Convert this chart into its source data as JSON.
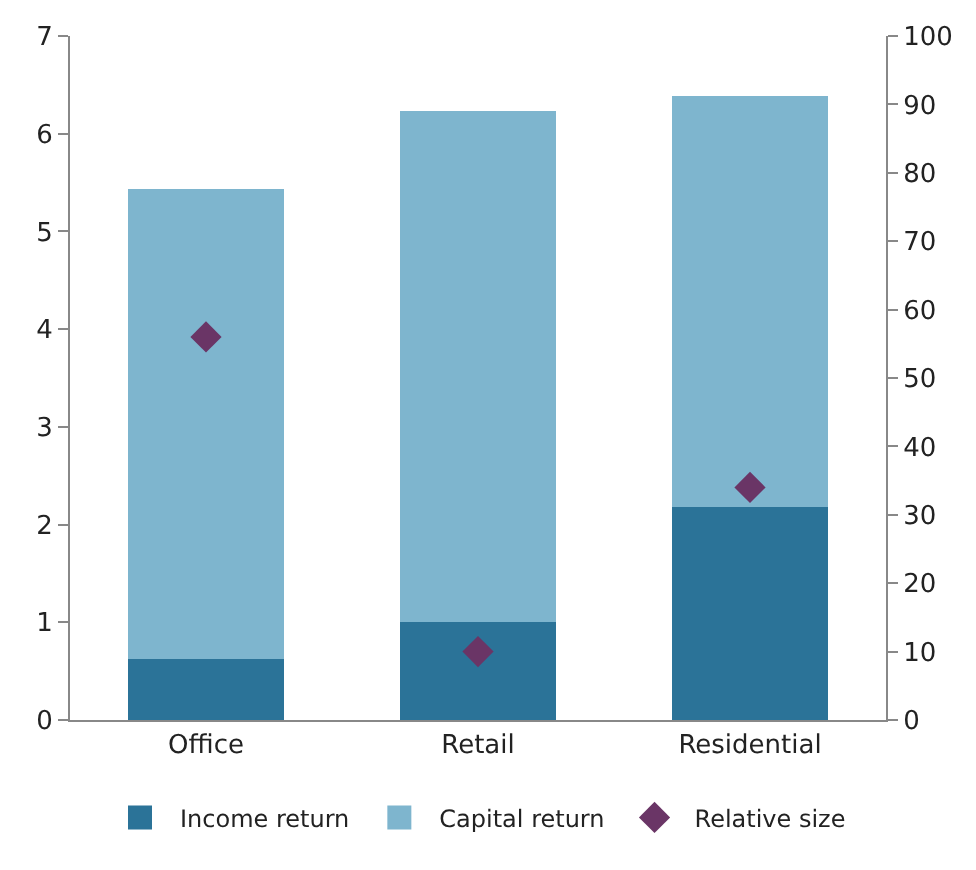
{
  "chart_data": {
    "type": "bar",
    "stacked": true,
    "categories": [
      "Office",
      "Retail",
      "Residential"
    ],
    "series": [
      {
        "name": "Income return",
        "color": "#2b7398",
        "values": [
          0.62,
          1.0,
          2.18
        ]
      },
      {
        "name": "Capital return",
        "color": "#7eb5ce",
        "values": [
          4.81,
          5.23,
          4.21
        ]
      },
      {
        "name": "Relative size",
        "type": "scatter",
        "axis": "y2",
        "marker": "diamond",
        "color": "#6a3566",
        "values": [
          56,
          10,
          34
        ]
      }
    ],
    "ylim": [
      0,
      7
    ],
    "yticks": [
      0,
      1,
      2,
      3,
      4,
      5,
      6,
      7
    ],
    "y2lim": [
      0,
      100
    ],
    "y2ticks": [
      0,
      10,
      20,
      30,
      40,
      50,
      60,
      70,
      80,
      90,
      100
    ],
    "legend": "bottom"
  }
}
